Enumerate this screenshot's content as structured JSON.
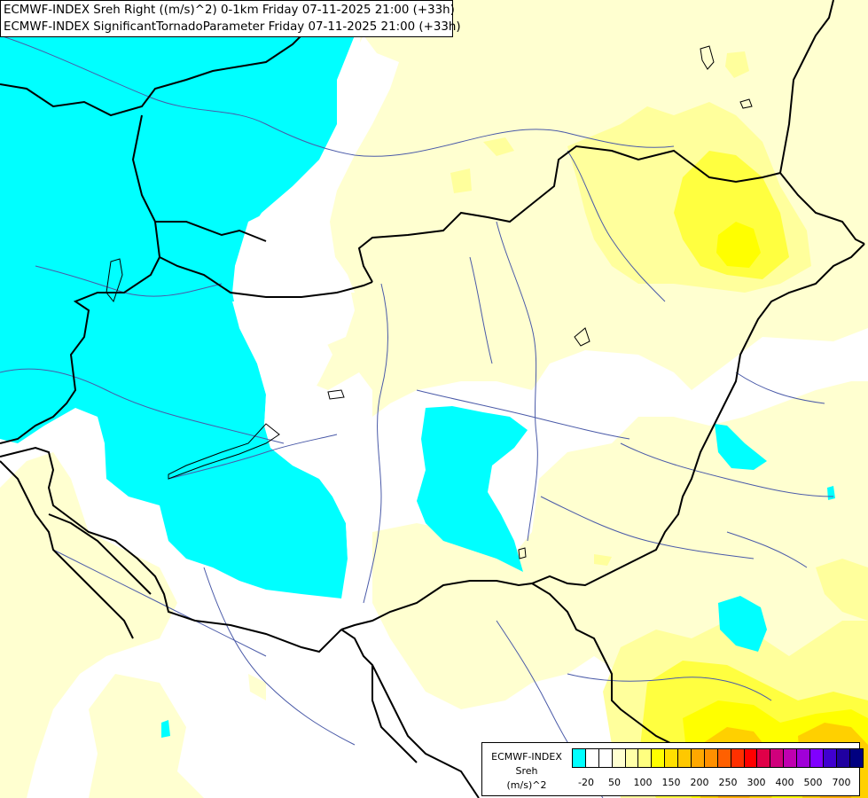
{
  "header": {
    "line1": "ECMWF-INDEX Sreh Right ((m/s)^2) 0-1km Friday 07-11-2025 21:00 (+33h)",
    "line2": "ECMWF-INDEX SignificantTornadoParameter Friday 07-11-2025 21:00 (+33h)"
  },
  "legend": {
    "title1": "ECMWF-INDEX",
    "title2": "Sreh",
    "title3": "(m/s)^2",
    "colors": [
      "#00ffff",
      "#ffffff",
      "#ffffff",
      "#ffffd0",
      "#ffffa8",
      "#ffff80",
      "#ffff00",
      "#ffe000",
      "#ffc800",
      "#ffa800",
      "#ff9000",
      "#ff6000",
      "#ff3000",
      "#ff0000",
      "#e00048",
      "#d0007c",
      "#c000b0",
      "#a000d8",
      "#8000ff",
      "#4000d0",
      "#2000a0",
      "#000080"
    ],
    "ticks": [
      "-20",
      "50",
      "100",
      "150",
      "200",
      "250",
      "300",
      "400",
      "500",
      "700"
    ]
  },
  "map": {
    "cyan_color": "#00ffff",
    "pale_yellow_color": "#ffffd0",
    "light_yellow_color": "#ffff9c",
    "yellow_color": "#ffff40",
    "bright_yellow_color": "#ffff00",
    "orange_color": "#ffd000",
    "deep_orange_color": "#ffb000",
    "border_color": "#000000",
    "river_color": "#4a5aa8"
  }
}
